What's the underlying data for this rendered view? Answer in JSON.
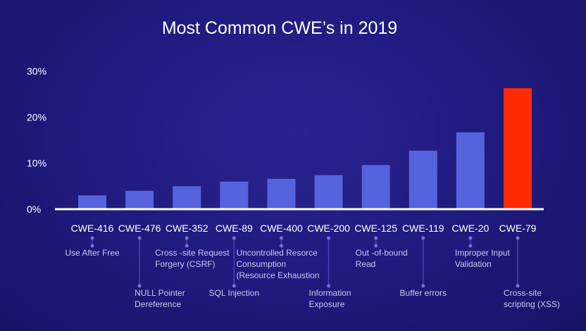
{
  "chart_data": {
    "type": "bar",
    "title": "Most Common CWE’s in 2019",
    "xlabel": "",
    "ylabel": "",
    "ylim": [
      0,
      30
    ],
    "y_ticks": [
      "0%",
      "10%",
      "20%",
      "30%"
    ],
    "categories": [
      "CWE-416",
      "CWE-476",
      "CWE-352",
      "CWE-89",
      "CWE-400",
      "CWE-200",
      "CWE-125",
      "CWE-119",
      "CWE-20",
      "CWE-79"
    ],
    "descriptions": [
      [
        "Use After Free"
      ],
      [
        "NULL Pointer",
        "Dereference"
      ],
      [
        "Cross -site Request",
        "Forgery (CSRF)"
      ],
      [
        "SQL Injection"
      ],
      [
        "Uncontrolled Resorce",
        "Consumption",
        "(Resource Exhaustion"
      ],
      [
        "Information",
        "Exposure"
      ],
      [
        "Out -of-bound",
        "Read"
      ],
      [
        "Buffer errors"
      ],
      [
        "Improper Input",
        "Validation"
      ],
      [
        "Cross-site",
        "scripting (XSS)"
      ]
    ],
    "values": [
      3,
      4,
      5,
      6,
      6.6,
      7.4,
      9.6,
      12.7,
      16.7,
      26.3
    ],
    "highlight_index": 9,
    "grid": false,
    "colors": {
      "bar": "#5563dd",
      "highlight": "#ff2a00",
      "baseline": "#ffffff",
      "desc_dot": "#7b6fd8",
      "desc_line": "#4b42b8"
    }
  }
}
